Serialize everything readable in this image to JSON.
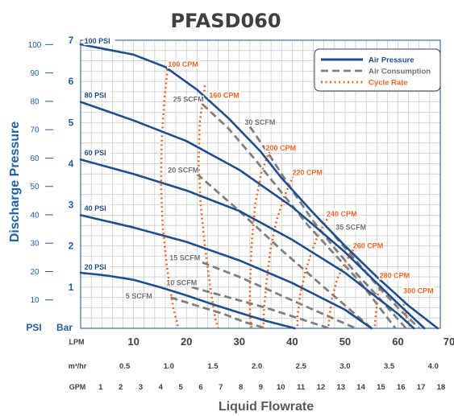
{
  "colors": {
    "air_pressure": "#1f4e8c",
    "air_consumption": "#808080",
    "cycle_rate": "#f26522",
    "axis_blue": "#1f5fa3",
    "grid": "#bdbdbd",
    "title": "#404040"
  },
  "chart_data": {
    "type": "line",
    "title": "PFASD060",
    "xlabel": "Liquid Flowrate",
    "ylabel": "Discharge Pressure",
    "grid": true,
    "legend_position": "top-right",
    "xlim": [
      0,
      68
    ],
    "ylim": [
      0,
      7
    ],
    "x_axis": {
      "unit": "LPM",
      "ticks": [
        "10",
        "20",
        "30",
        "40",
        "50",
        "60",
        "70"
      ]
    },
    "secondary_x_axes": [
      {
        "unit": "m³/hr",
        "ticks": [
          "0.5",
          "1.0",
          "1.5",
          "2.0",
          "2.5",
          "3.0",
          "3.5",
          "4.0"
        ]
      },
      {
        "unit": "GPM",
        "ticks": [
          "1",
          "2",
          "3",
          "4",
          "5",
          "6",
          "7",
          "8",
          "9",
          "10",
          "11",
          "12",
          "13",
          "14",
          "15",
          "16",
          "17",
          "18"
        ]
      }
    ],
    "y_axis_bar": {
      "unit": "Bar",
      "ticks": [
        "1",
        "2",
        "3",
        "4",
        "5",
        "6",
        "7"
      ]
    },
    "y_axis_psi": {
      "unit": "PSI",
      "ticks": [
        "10",
        "20",
        "30",
        "40",
        "50",
        "60",
        "70",
        "80",
        "90",
        "100"
      ]
    },
    "legend": [
      "Air Pressure",
      "Air Consumption",
      "Cycle Rate"
    ],
    "air_pressure_series": [
      {
        "name": "100 PSI",
        "x": [
          0,
          10,
          16,
          22,
          28,
          34,
          38,
          44,
          50,
          56,
          62,
          67.5
        ],
        "y": [
          6.9,
          6.65,
          6.35,
          5.8,
          5.1,
          4.3,
          3.65,
          2.8,
          2.0,
          1.25,
          0.55,
          0
        ]
      },
      {
        "name": "80 PSI",
        "x": [
          0,
          10,
          20,
          30,
          40,
          50,
          60,
          65
        ],
        "y": [
          5.5,
          5.05,
          4.55,
          3.85,
          2.95,
          1.85,
          0.6,
          0
        ]
      },
      {
        "name": "60 PSI",
        "x": [
          0,
          10,
          20,
          30,
          40,
          50,
          60,
          63
        ],
        "y": [
          4.1,
          3.75,
          3.35,
          2.85,
          2.15,
          1.35,
          0.35,
          0
        ]
      },
      {
        "name": "40 PSI",
        "x": [
          0,
          10,
          20,
          30,
          40,
          50,
          55
        ],
        "y": [
          2.75,
          2.45,
          2.1,
          1.65,
          1.1,
          0.45,
          0
        ]
      },
      {
        "name": "20 PSI",
        "x": [
          0,
          5,
          10,
          15,
          20,
          25,
          30,
          35,
          40.5
        ],
        "y": [
          1.35,
          1.28,
          1.18,
          1.0,
          0.8,
          0.58,
          0.38,
          0.18,
          0
        ]
      }
    ],
    "air_consumption_series": [
      {
        "name": "5 SCFM",
        "x": [
          17,
          22,
          27,
          31,
          35
        ],
        "y": [
          0.75,
          0.55,
          0.35,
          0.15,
          0
        ]
      },
      {
        "name": "10 SCFM",
        "x": [
          21,
          28,
          35,
          41,
          47
        ],
        "y": [
          1.0,
          0.75,
          0.5,
          0.25,
          0
        ]
      },
      {
        "name": "15 SCFM",
        "x": [
          23,
          30,
          37,
          44,
          52
        ],
        "y": [
          1.6,
          1.25,
          0.85,
          0.45,
          0
        ]
      },
      {
        "name": "20 SCFM",
        "x": [
          22,
          30,
          38,
          46,
          55
        ],
        "y": [
          3.75,
          2.85,
          1.9,
          1.0,
          0
        ]
      },
      {
        "name": "25 SCFM",
        "x": [
          23,
          28,
          33,
          38,
          43,
          48,
          53,
          59.5
        ],
        "y": [
          5.45,
          4.85,
          4.1,
          3.3,
          2.5,
          1.8,
          1.1,
          0
        ]
      },
      {
        "name": "30 SCFM",
        "x": [
          32,
          36,
          40,
          44,
          48,
          52,
          56,
          61.5
        ],
        "y": [
          4.9,
          4.15,
          3.35,
          2.6,
          1.95,
          1.35,
          0.8,
          0
        ]
      },
      {
        "name": "35 SCFM",
        "x": [
          48,
          52,
          56,
          60,
          64
        ],
        "y": [
          2.25,
          1.65,
          1.05,
          0.5,
          0
        ]
      }
    ],
    "cycle_rate_series": [
      {
        "name": "100 CPM",
        "x": [
          16.5,
          15.8,
          15.3,
          15.2,
          15.5,
          16.3,
          17.5,
          18.5
        ],
        "y": [
          6.4,
          5.5,
          4.5,
          3.5,
          2.5,
          1.5,
          0.5,
          0
        ]
      },
      {
        "name": "160 CPM",
        "x": [
          23.5,
          22.5,
          22.3,
          22.7,
          23.5,
          24.5,
          25.5,
          26
        ],
        "y": [
          5.9,
          5.0,
          4.0,
          3.0,
          2.0,
          1.0,
          0.2,
          0
        ]
      },
      {
        "name": "200 CPM",
        "x": [
          36,
          34.2,
          33,
          32.3,
          32,
          32,
          32.3
        ],
        "y": [
          4.4,
          3.8,
          3.0,
          2.0,
          1.0,
          0.3,
          0
        ]
      },
      {
        "name": "220 CPM",
        "x": [
          40.5,
          38.5,
          37,
          36,
          35.2,
          34.7,
          34.5
        ],
        "y": [
          3.8,
          3.2,
          2.6,
          2.0,
          1.2,
          0.5,
          0
        ]
      },
      {
        "name": "240 CPM",
        "x": [
          47,
          45,
          43.8,
          42.5,
          41.5,
          41,
          41
        ],
        "y": [
          2.75,
          2.3,
          1.9,
          1.4,
          0.8,
          0.3,
          0
        ]
      },
      {
        "name": "260 CPM",
        "x": [
          52,
          50,
          48.5,
          47.5,
          47,
          46.8
        ],
        "y": [
          2.0,
          1.6,
          1.2,
          0.7,
          0.25,
          0
        ]
      },
      {
        "name": "280 CPM",
        "x": [
          57,
          56.2,
          55.8,
          55.6
        ],
        "y": [
          1.15,
          0.8,
          0.35,
          0
        ]
      },
      {
        "name": "300 CPM",
        "x": [
          61,
          61.2,
          61.8,
          62.5
        ],
        "y": [
          0.7,
          0.45,
          0.2,
          0
        ]
      }
    ],
    "curve_labels": [
      {
        "text": "100 PSI",
        "type": "pressure",
        "x": 0.7,
        "y": 6.92
      },
      {
        "text": "80 PSI",
        "type": "pressure",
        "x": 0.7,
        "y": 5.6
      },
      {
        "text": "60 PSI",
        "type": "pressure",
        "x": 0.7,
        "y": 4.2
      },
      {
        "text": "40 PSI",
        "type": "pressure",
        "x": 0.7,
        "y": 2.85
      },
      {
        "text": "20 PSI",
        "type": "pressure",
        "x": 0.7,
        "y": 1.43
      },
      {
        "text": "100 CPM",
        "type": "cycle",
        "x": 16.5,
        "y": 6.35
      },
      {
        "text": "160 CPM",
        "type": "cycle",
        "x": 24.3,
        "y": 5.6
      },
      {
        "text": "200 CPM",
        "type": "cycle",
        "x": 35,
        "y": 4.32
      },
      {
        "text": "220 CPM",
        "type": "cycle",
        "x": 40,
        "y": 3.72
      },
      {
        "text": "240 CPM",
        "type": "cycle",
        "x": 46.5,
        "y": 2.72
      },
      {
        "text": "260 CPM",
        "type": "cycle",
        "x": 51.5,
        "y": 1.95
      },
      {
        "text": "280 CPM",
        "type": "cycle",
        "x": 56.5,
        "y": 1.22
      },
      {
        "text": "300 CPM",
        "type": "cycle",
        "x": 61,
        "y": 0.85
      },
      {
        "text": "25 SCFM",
        "type": "consumption",
        "x": 17.5,
        "y": 5.5
      },
      {
        "text": "30 SCFM",
        "type": "consumption",
        "x": 31,
        "y": 4.95
      },
      {
        "text": "20 SCFM",
        "type": "consumption",
        "x": 16.5,
        "y": 3.78
      },
      {
        "text": "35 SCFM",
        "type": "consumption",
        "x": 48.2,
        "y": 2.4
      },
      {
        "text": "15 SCFM",
        "type": "consumption",
        "x": 16.8,
        "y": 1.65
      },
      {
        "text": "10 SCFM",
        "type": "consumption",
        "x": 16.2,
        "y": 1.05
      },
      {
        "text": "5 SCFM",
        "type": "consumption",
        "x": 8.5,
        "y": 0.72
      }
    ]
  }
}
